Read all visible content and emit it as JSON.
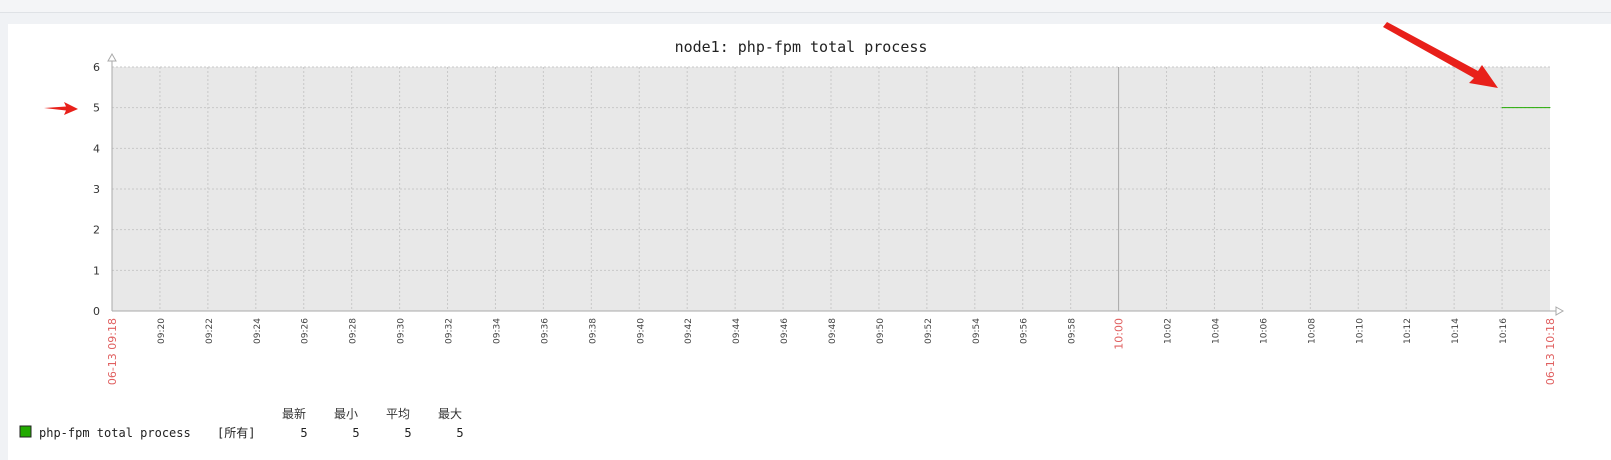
{
  "chart_data": {
    "type": "line",
    "title": "node1: php-fpm total process",
    "ylim": [
      0,
      6
    ],
    "yticks": [
      "0",
      "1",
      "2",
      "3",
      "4",
      "5",
      "6"
    ],
    "x_minutes_range": [
      558,
      618
    ],
    "xticks": [
      {
        "label": "09:20",
        "minute": 560
      },
      {
        "label": "09:22",
        "minute": 562
      },
      {
        "label": "09:24",
        "minute": 564
      },
      {
        "label": "09:26",
        "minute": 566
      },
      {
        "label": "09:28",
        "minute": 568
      },
      {
        "label": "09:30",
        "minute": 570
      },
      {
        "label": "09:32",
        "minute": 572
      },
      {
        "label": "09:34",
        "minute": 574
      },
      {
        "label": "09:36",
        "minute": 576
      },
      {
        "label": "09:38",
        "minute": 578
      },
      {
        "label": "09:40",
        "minute": 580
      },
      {
        "label": "09:42",
        "minute": 582
      },
      {
        "label": "09:44",
        "minute": 584
      },
      {
        "label": "09:46",
        "minute": 586
      },
      {
        "label": "09:48",
        "minute": 588
      },
      {
        "label": "09:50",
        "minute": 590
      },
      {
        "label": "09:52",
        "minute": 592
      },
      {
        "label": "09:54",
        "minute": 594
      },
      {
        "label": "09:56",
        "minute": 596
      },
      {
        "label": "09:58",
        "minute": 598
      },
      {
        "label": "10:00",
        "minute": 600,
        "highlight": true
      },
      {
        "label": "10:02",
        "minute": 602
      },
      {
        "label": "10:04",
        "minute": 604
      },
      {
        "label": "10:06",
        "minute": 606
      },
      {
        "label": "10:08",
        "minute": 608
      },
      {
        "label": "10:10",
        "minute": 610
      },
      {
        "label": "10:12",
        "minute": 612
      },
      {
        "label": "10:14",
        "minute": 614
      },
      {
        "label": "10:16",
        "minute": 616
      }
    ],
    "x_start_label": "06-13 09:18",
    "x_end_label": "06-13 10:18",
    "series": [
      {
        "name": "php-fpm total process",
        "color": "#22aa00",
        "points": [
          [
            616,
            5
          ],
          [
            618,
            5
          ]
        ]
      }
    ],
    "grid": true,
    "legend": {
      "headers": [
        "最新",
        "最小",
        "平均",
        "最大"
      ],
      "rows": [
        {
          "name": "php-fpm total process",
          "scope": "[所有]",
          "values": [
            "5",
            "5",
            "5",
            "5"
          ],
          "color": "#22aa00"
        }
      ]
    },
    "colors": {
      "plot_bg": "#e8e8e8",
      "grid": "#c8c8c8",
      "axis": "#aaaaaa",
      "highlight": "#e06060",
      "annotation_arrow": "#e8201a"
    }
  }
}
